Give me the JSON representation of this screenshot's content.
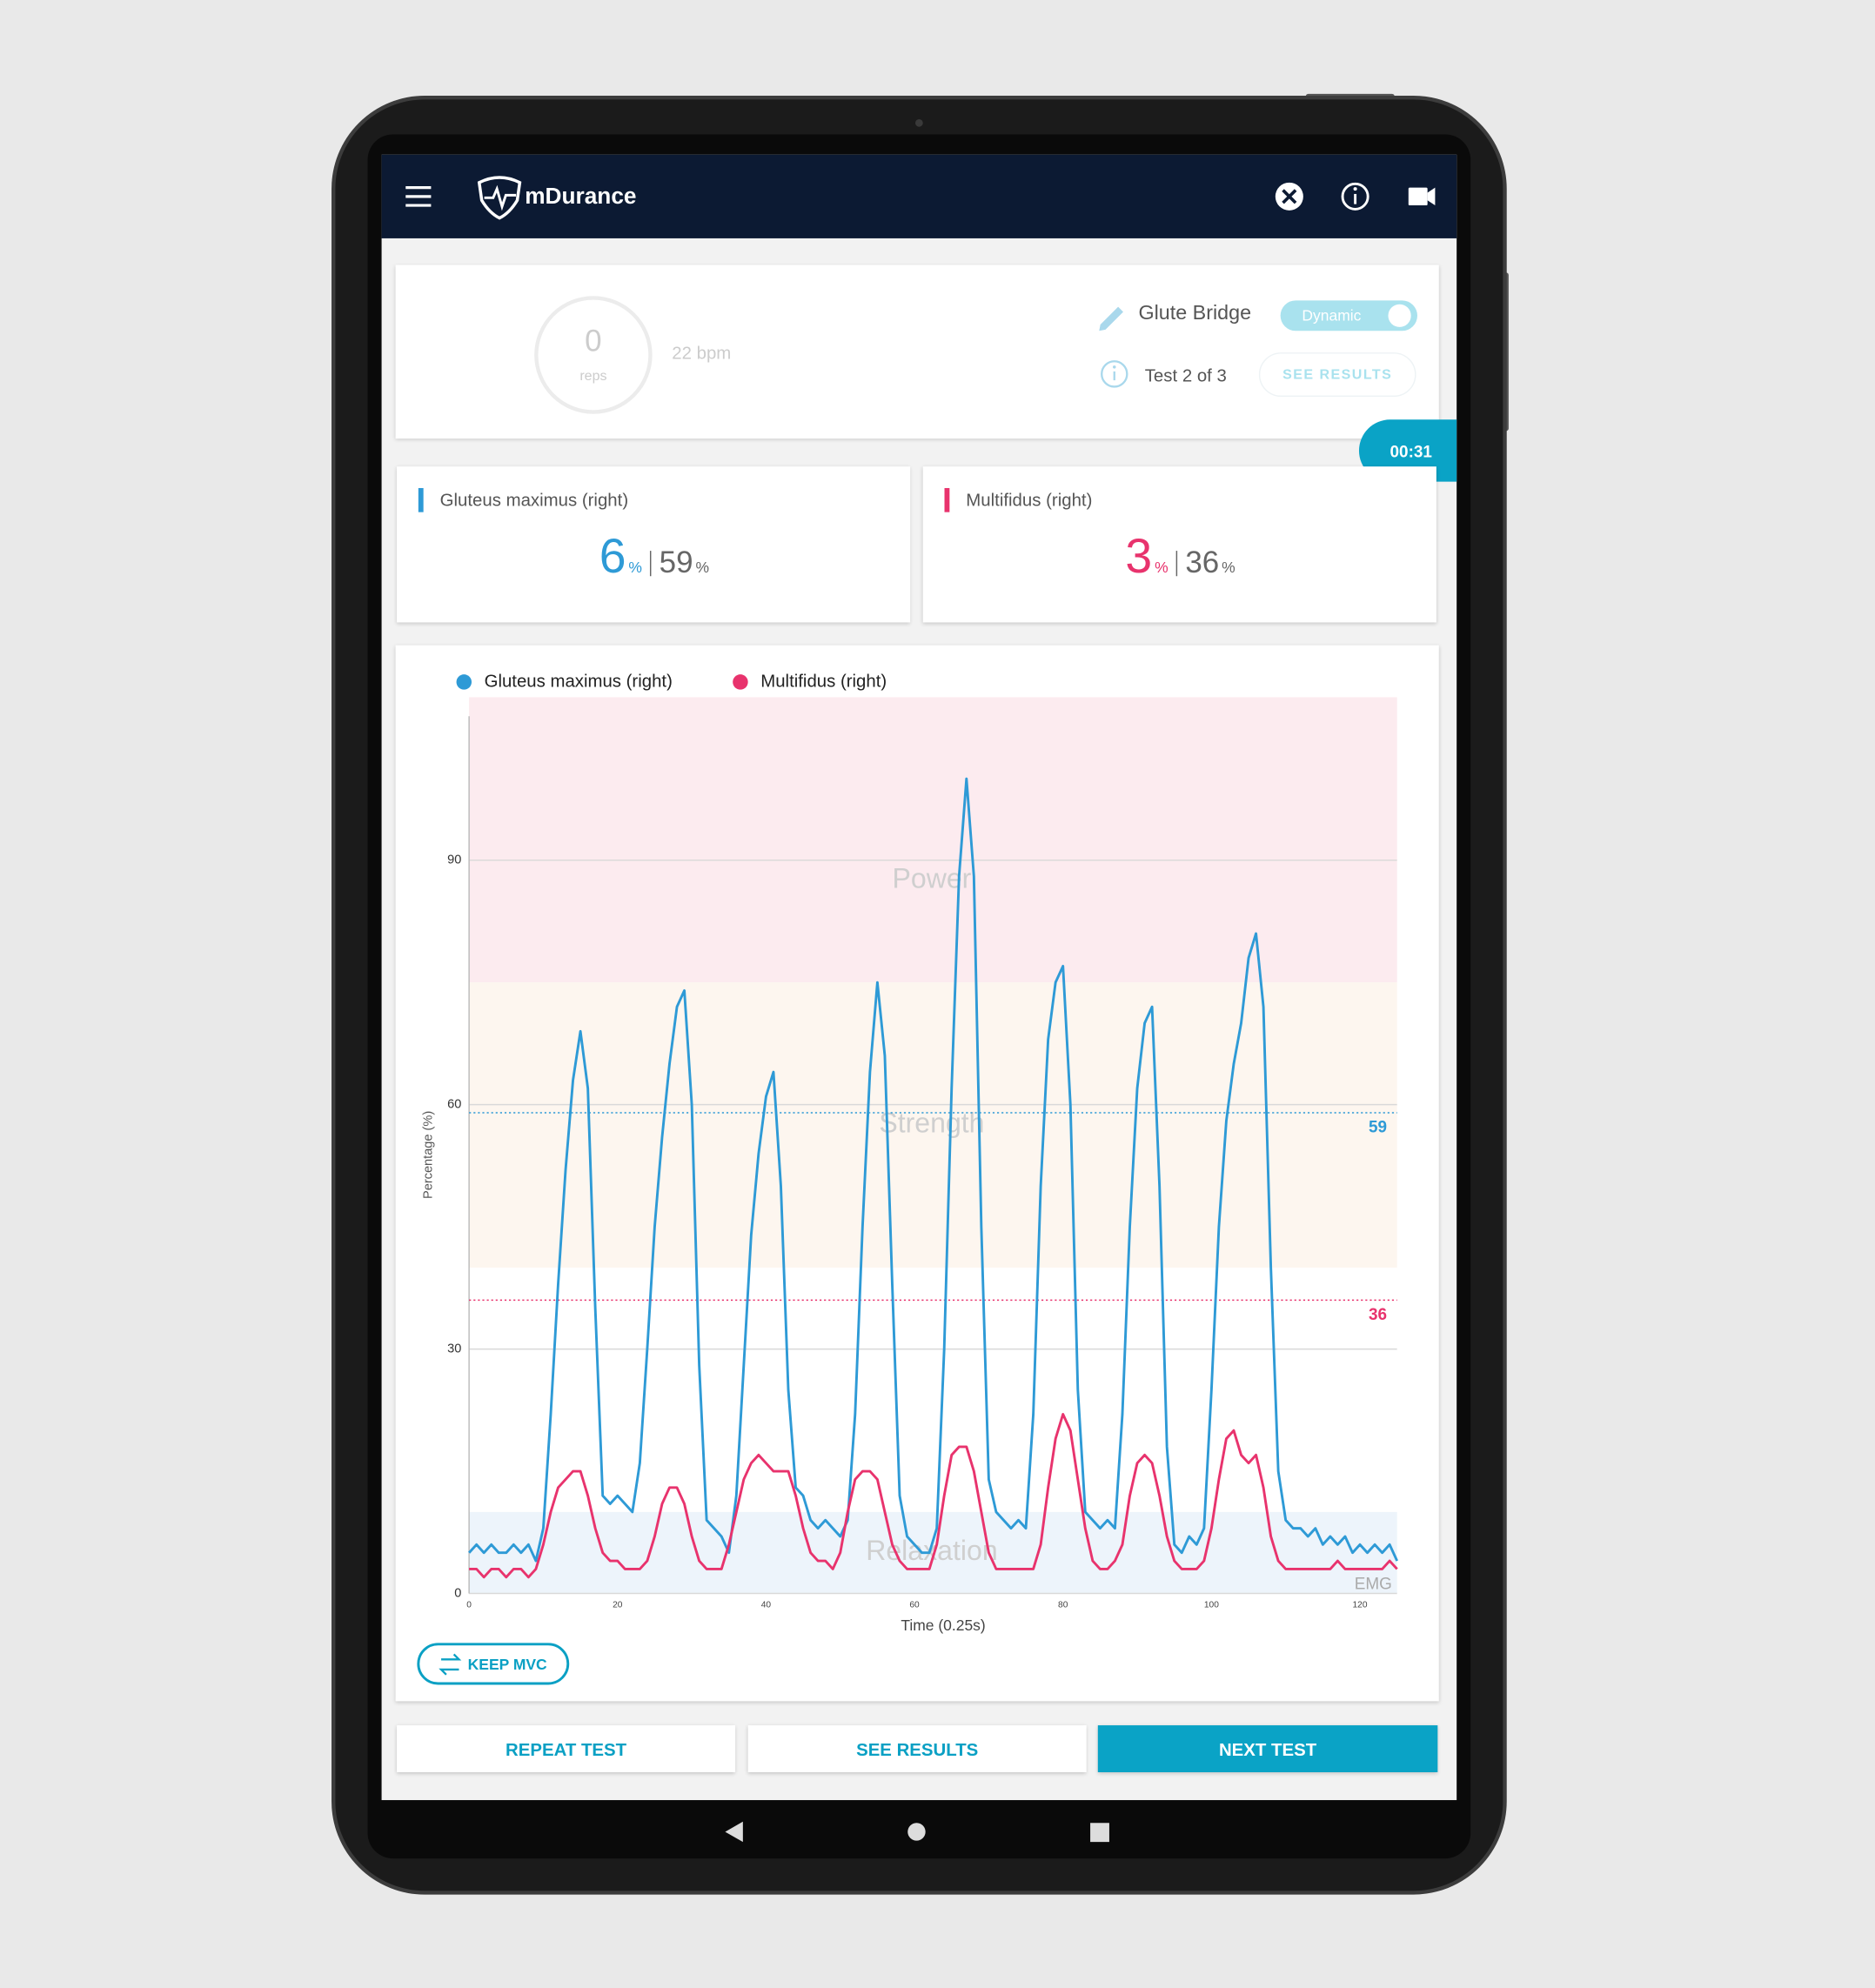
{
  "header": {
    "app_name": "mDurance"
  },
  "session": {
    "reps": 0,
    "reps_label": "reps",
    "rate": "22 bpm",
    "exercise": "Glute Bridge",
    "mode": "Dynamic",
    "test": "Test 2 of 3",
    "see_results": "SEE RESULTS",
    "timer": "00:31"
  },
  "cards": [
    {
      "value": 6,
      "unit": "%",
      "mvc": 59
    },
    {
      "value": 3,
      "unit": "%",
      "mvc": 36
    }
  ],
  "chart_data": {
    "type": "line",
    "y_label": "Percentage (%)",
    "x_label": "Time (0.25s)",
    "corner_label": "EMG",
    "xlim": [
      0,
      125
    ],
    "xticks": [
      0,
      20,
      40,
      60,
      80,
      100,
      120
    ],
    "ylim": [
      0,
      110
    ],
    "yticks": [
      0,
      30,
      60,
      90
    ],
    "grid": true,
    "bands": [
      {
        "label": "Relaxation",
        "from": 0,
        "to": 10,
        "color": "#edf4fb"
      },
      {
        "label": "Strength",
        "from": 40,
        "to": 75,
        "color": "#fdf6ef"
      },
      {
        "label": "Power",
        "from": 75,
        "to": 110,
        "color": "#fcebef"
      }
    ],
    "reference_lines": [
      {
        "value": 59,
        "color": "#2e9ad6"
      },
      {
        "value": 36,
        "color": "#e8336d"
      }
    ],
    "x": [
      0,
      1,
      2,
      3,
      4,
      5,
      6,
      7,
      8,
      9,
      10,
      11,
      12,
      13,
      14,
      15,
      16,
      17,
      18,
      19,
      20,
      21,
      22,
      23,
      24,
      25,
      26,
      27,
      28,
      29,
      30,
      31,
      32,
      33,
      34,
      35,
      36,
      37,
      38,
      39,
      40,
      41,
      42,
      43,
      44,
      45,
      46,
      47,
      48,
      49,
      50,
      51,
      52,
      53,
      54,
      55,
      56,
      57,
      58,
      59,
      60,
      61,
      62,
      63,
      64,
      65,
      66,
      67,
      68,
      69,
      70,
      71,
      72,
      73,
      74,
      75,
      76,
      77,
      78,
      79,
      80,
      81,
      82,
      83,
      84,
      85,
      86,
      87,
      88,
      89,
      90,
      91,
      92,
      93,
      94,
      95,
      96,
      97,
      98,
      99,
      100,
      101,
      102,
      103,
      104,
      105,
      106,
      107,
      108,
      109,
      110,
      111,
      112,
      113,
      114,
      115,
      116,
      117,
      118,
      119,
      120,
      121,
      122,
      123,
      124,
      125
    ],
    "series": [
      {
        "name": "Gluteus maximus (right)",
        "color": "#2e9ad6",
        "values": [
          5,
          6,
          5,
          6,
          5,
          5,
          6,
          5,
          6,
          4,
          8,
          22,
          38,
          52,
          63,
          69,
          62,
          35,
          12,
          11,
          12,
          11,
          10,
          16,
          30,
          45,
          56,
          65,
          72,
          74,
          60,
          28,
          9,
          8,
          7,
          5,
          12,
          28,
          44,
          54,
          61,
          64,
          50,
          25,
          13,
          12,
          9,
          8,
          9,
          8,
          7,
          9,
          22,
          45,
          64,
          75,
          66,
          38,
          12,
          7,
          6,
          5,
          5,
          8,
          30,
          62,
          88,
          100,
          88,
          45,
          14,
          10,
          9,
          8,
          9,
          8,
          22,
          50,
          68,
          75,
          77,
          60,
          25,
          10,
          9,
          8,
          9,
          8,
          22,
          45,
          62,
          70,
          72,
          50,
          18,
          6,
          5,
          7,
          6,
          8,
          25,
          45,
          58,
          65,
          70,
          78,
          81,
          72,
          40,
          15,
          9,
          8,
          8,
          7,
          8,
          6,
          7,
          6,
          7,
          5,
          6,
          5,
          6,
          5,
          6,
          4
        ]
      },
      {
        "name": "Multifidus (right)",
        "color": "#e8336d",
        "values": [
          3,
          3,
          2,
          3,
          3,
          2,
          3,
          3,
          2,
          3,
          6,
          10,
          13,
          14,
          15,
          15,
          12,
          8,
          5,
          4,
          4,
          3,
          3,
          3,
          4,
          7,
          11,
          13,
          13,
          11,
          7,
          4,
          3,
          3,
          3,
          6,
          10,
          14,
          16,
          17,
          16,
          15,
          15,
          15,
          12,
          8,
          5,
          4,
          4,
          3,
          5,
          10,
          14,
          15,
          15,
          14,
          10,
          6,
          4,
          3,
          3,
          3,
          3,
          6,
          12,
          17,
          18,
          18,
          15,
          10,
          5,
          3,
          3,
          3,
          3,
          3,
          3,
          6,
          13,
          19,
          22,
          20,
          14,
          8,
          4,
          3,
          3,
          4,
          6,
          12,
          16,
          17,
          16,
          12,
          7,
          4,
          3,
          3,
          3,
          4,
          8,
          14,
          19,
          20,
          17,
          16,
          17,
          13,
          7,
          4,
          3,
          3,
          3,
          3,
          3,
          3,
          3,
          4,
          3,
          3,
          3,
          3,
          3,
          3,
          4,
          3
        ]
      }
    ]
  },
  "buttons": {
    "keep_mvc": "KEEP MVC",
    "repeat": "REPEAT TEST",
    "see_results": "SEE RESULTS",
    "next": "NEXT TEST"
  }
}
